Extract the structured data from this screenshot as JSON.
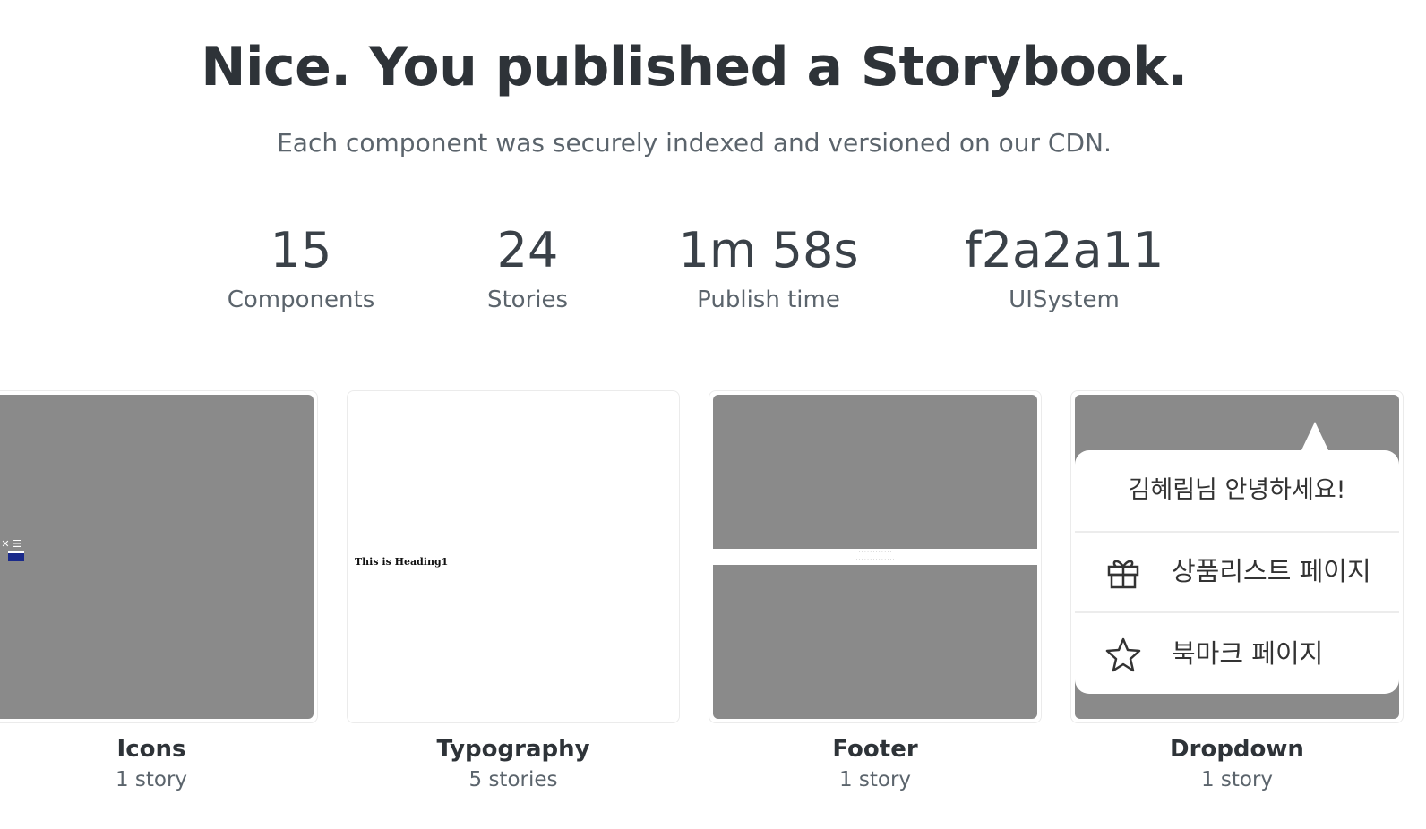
{
  "header": {
    "title": "Nice. You published a Storybook.",
    "subtitle": "Each component was securely indexed and versioned on our CDN."
  },
  "stats": [
    {
      "value": "15",
      "label": "Components"
    },
    {
      "value": "24",
      "label": "Stories"
    },
    {
      "value": "1m 58s",
      "label": "Publish time"
    },
    {
      "value": "f2a2a11",
      "label": "UISystem"
    }
  ],
  "cards": [
    {
      "title": "Icons",
      "count": "1 story"
    },
    {
      "title": "Typography",
      "count": "5 stories",
      "preview_text": "This is Heading1"
    },
    {
      "title": "Footer",
      "count": "1 story"
    },
    {
      "title": "Dropdown",
      "count": "1 story",
      "menu": {
        "greeting": "김혜림님 안녕하세요!",
        "items": [
          {
            "label": "상품리스트 페이지",
            "icon": "gift-icon"
          },
          {
            "label": "북마크 페이지",
            "icon": "star-icon"
          }
        ]
      }
    }
  ],
  "colors": {
    "thumb_bg": "#8a8a8a",
    "heading": "#2e3338",
    "muted": "#5b646c"
  }
}
